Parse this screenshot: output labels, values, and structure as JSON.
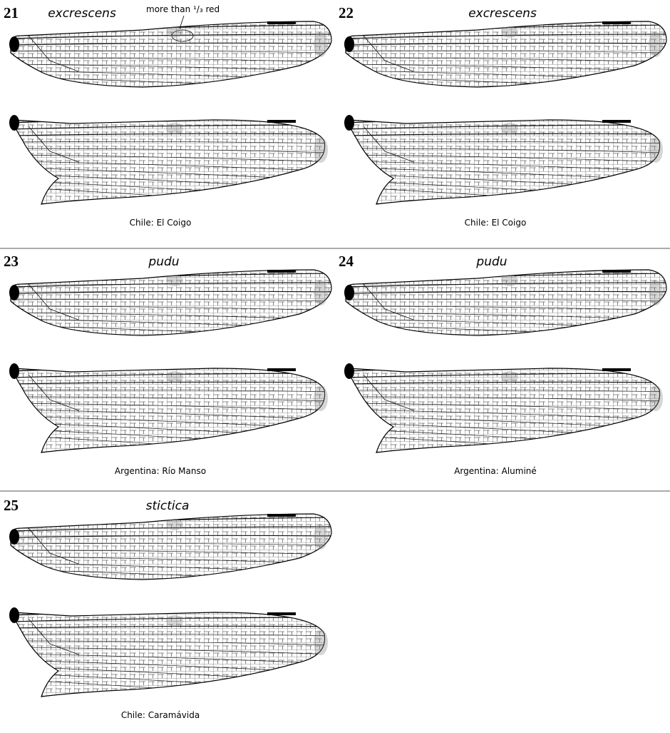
{
  "panels": [
    {
      "number": "21",
      "species": "excrescens",
      "locality": "Chile: El Coigo"
    },
    {
      "number": "22",
      "species": "excrescens",
      "locality": "Chile: El Coigo"
    },
    {
      "number": "23",
      "species": "pudu",
      "locality": "Argentina: Río Manso"
    },
    {
      "number": "24",
      "species": "pudu",
      "locality": "Argentina: Aluminé"
    },
    {
      "number": "25",
      "species": "stictica",
      "locality": "Chile: Caramávida"
    }
  ],
  "annotation": "more than ¹/₃ red"
}
